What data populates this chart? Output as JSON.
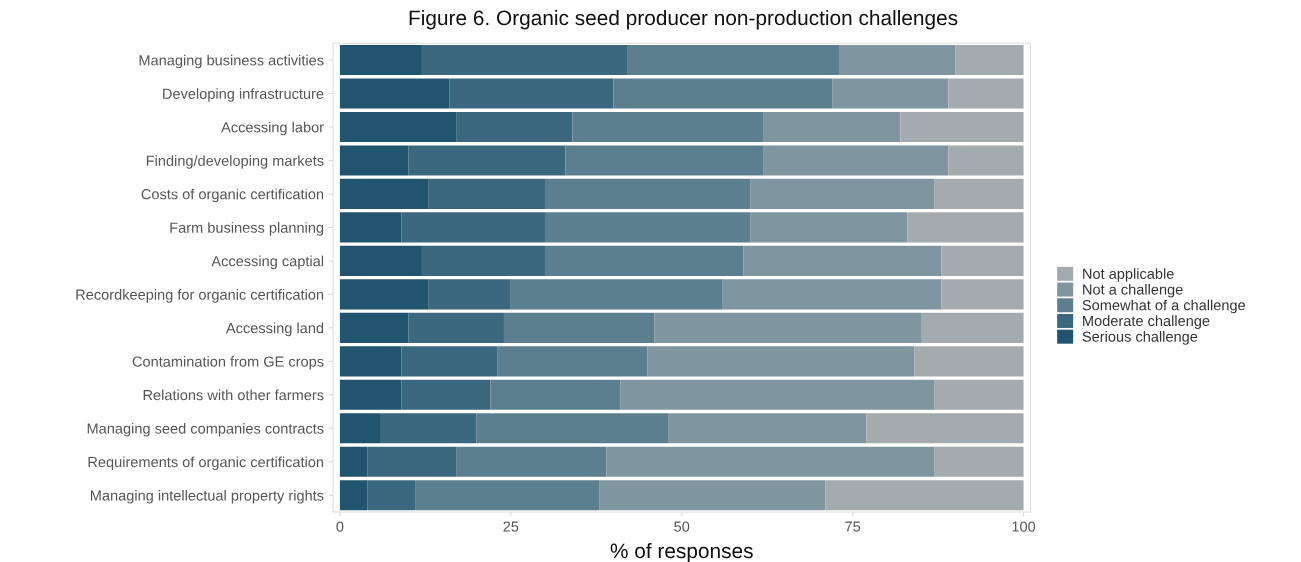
{
  "chart_data": {
    "type": "bar",
    "orientation": "horizontal",
    "stacked": true,
    "title": "Figure 6. Organic seed producer non-production challenges",
    "xlabel": "% of responses",
    "categories": [
      "Managing business activities",
      "Developing infrastructure",
      "Accessing labor",
      "Finding/developing markets",
      "Costs of organic certification",
      "Farm business planning",
      "Accessing captial",
      "Recordkeeping for organic certification",
      "Accessing land",
      "Contamination from GE crops",
      "Relations with other farmers",
      "Managing seed companies contracts",
      "Requirements of organic certification",
      "Managing intellectual property rights"
    ],
    "series": [
      {
        "name": "Serious challenge",
        "color": "#21546e",
        "values": [
          12,
          16,
          17,
          10,
          13,
          9,
          12,
          13,
          10,
          9,
          9,
          6,
          4,
          4
        ]
      },
      {
        "name": "Moderate challenge",
        "color": "#3b687e",
        "values": [
          30,
          24,
          17,
          23,
          17,
          21,
          18,
          12,
          14,
          14,
          13,
          14,
          13,
          7
        ]
      },
      {
        "name": "Somewhat of a challenge",
        "color": "#5b7f8e",
        "values": [
          31,
          32,
          28,
          29,
          30,
          30,
          29,
          31,
          22,
          22,
          19,
          28,
          22,
          27
        ]
      },
      {
        "name": "Not a challenge",
        "color": "#7f96a1",
        "values": [
          17,
          17,
          20,
          27,
          27,
          23,
          29,
          32,
          39,
          39,
          46,
          29,
          48,
          33
        ]
      },
      {
        "name": "Not applicable",
        "color": "#a4abaf",
        "values": [
          10,
          11,
          18,
          11,
          13,
          17,
          12,
          12,
          15,
          16,
          13,
          23,
          13,
          29
        ]
      }
    ],
    "xlim": [
      -1,
      101
    ],
    "xticks": [
      0,
      25,
      50,
      75,
      100
    ],
    "legend": "right"
  }
}
